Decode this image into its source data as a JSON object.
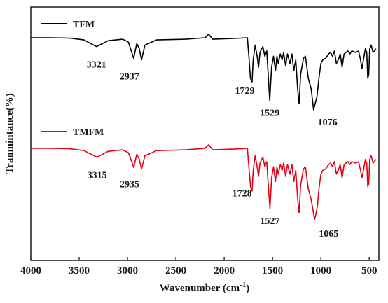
{
  "chart_data": {
    "type": "line",
    "xlabel": "Wavenumber (cm",
    "xlabel_sup": "-1",
    "xlabel_close": ")",
    "ylabel": "Tranmintance(%)",
    "xlim": [
      4000,
      400
    ],
    "x_reversed": true,
    "y_tick_labels": false,
    "grid": false,
    "legend_placement": "inline-above-each-trace",
    "x_ticks": [
      4000,
      3500,
      3000,
      2500,
      2000,
      1500,
      1000,
      500
    ],
    "x_tick_labels": [
      "4000",
      "3500",
      "3000",
      "2500",
      "2000",
      "1500",
      "1000",
      "500"
    ],
    "series": [
      {
        "name": "TFM",
        "color": "#000000",
        "points": [
          [
            4000,
            0
          ],
          [
            3800,
            0
          ],
          [
            3600,
            -0.5
          ],
          [
            3450,
            -3
          ],
          [
            3321,
            -12
          ],
          [
            3200,
            -4
          ],
          [
            3050,
            -2
          ],
          [
            2990,
            -6
          ],
          [
            2937,
            -28
          ],
          [
            2905,
            -8
          ],
          [
            2880,
            -14
          ],
          [
            2855,
            -30
          ],
          [
            2820,
            -10
          ],
          [
            2700,
            -3
          ],
          [
            2400,
            -2
          ],
          [
            2200,
            0
          ],
          [
            2160,
            5
          ],
          [
            2120,
            -2
          ],
          [
            1900,
            -1
          ],
          [
            1760,
            0
          ],
          [
            1745,
            -25
          ],
          [
            1729,
            -55
          ],
          [
            1712,
            -60
          ],
          [
            1700,
            -30
          ],
          [
            1680,
            -10
          ],
          [
            1660,
            -25
          ],
          [
            1645,
            -40
          ],
          [
            1630,
            -20
          ],
          [
            1600,
            -12
          ],
          [
            1580,
            -25
          ],
          [
            1560,
            -18
          ],
          [
            1545,
            -50
          ],
          [
            1529,
            -85
          ],
          [
            1510,
            -40
          ],
          [
            1490,
            -25
          ],
          [
            1470,
            -45
          ],
          [
            1455,
            -25
          ],
          [
            1440,
            -35
          ],
          [
            1420,
            -22
          ],
          [
            1400,
            -30
          ],
          [
            1385,
            -20
          ],
          [
            1365,
            -38
          ],
          [
            1345,
            -22
          ],
          [
            1320,
            -35
          ],
          [
            1300,
            -22
          ],
          [
            1280,
            -45
          ],
          [
            1260,
            -30
          ],
          [
            1240,
            -70
          ],
          [
            1225,
            -90
          ],
          [
            1210,
            -50
          ],
          [
            1180,
            -28
          ],
          [
            1160,
            -25
          ],
          [
            1130,
            -55
          ],
          [
            1100,
            -70
          ],
          [
            1076,
            -98
          ],
          [
            1060,
            -90
          ],
          [
            1040,
            -80
          ],
          [
            1020,
            -55
          ],
          [
            1000,
            -35
          ],
          [
            980,
            -30
          ],
          [
            950,
            -28
          ],
          [
            920,
            -22
          ],
          [
            900,
            -20
          ],
          [
            880,
            -25
          ],
          [
            860,
            -18
          ],
          [
            840,
            -35
          ],
          [
            820,
            -30
          ],
          [
            800,
            -22
          ],
          [
            780,
            -40
          ],
          [
            760,
            -22
          ],
          [
            720,
            -18
          ],
          [
            700,
            -22
          ],
          [
            680,
            -18
          ],
          [
            640,
            -20
          ],
          [
            610,
            -18
          ],
          [
            590,
            -30
          ],
          [
            575,
            -42
          ],
          [
            560,
            -30
          ],
          [
            540,
            -15
          ],
          [
            525,
            -20
          ],
          [
            515,
            -55
          ],
          [
            505,
            -50
          ],
          [
            495,
            -15
          ],
          [
            480,
            -10
          ],
          [
            460,
            -20
          ],
          [
            430,
            -15
          ]
        ],
        "labels": [
          {
            "x": 3321,
            "text": "3321"
          },
          {
            "x": 2937,
            "text": "2937"
          },
          {
            "x": 1729,
            "text": "1729"
          },
          {
            "x": 1529,
            "text": "1529"
          },
          {
            "x": 1076,
            "text": "1076"
          }
        ]
      },
      {
        "name": "TMFM",
        "color": "#e60012",
        "points": [
          [
            4000,
            0
          ],
          [
            3800,
            0
          ],
          [
            3600,
            -0.5
          ],
          [
            3450,
            -3
          ],
          [
            3315,
            -12
          ],
          [
            3200,
            -4
          ],
          [
            3050,
            -2
          ],
          [
            2990,
            -6
          ],
          [
            2935,
            -26
          ],
          [
            2905,
            -8
          ],
          [
            2880,
            -14
          ],
          [
            2855,
            -28
          ],
          [
            2820,
            -10
          ],
          [
            2700,
            -3
          ],
          [
            2400,
            -2
          ],
          [
            2200,
            0
          ],
          [
            2160,
            5
          ],
          [
            2120,
            -2
          ],
          [
            1900,
            -1
          ],
          [
            1760,
            0
          ],
          [
            1745,
            -25
          ],
          [
            1728,
            -52
          ],
          [
            1712,
            -58
          ],
          [
            1700,
            -30
          ],
          [
            1680,
            -10
          ],
          [
            1660,
            -25
          ],
          [
            1645,
            -38
          ],
          [
            1630,
            -20
          ],
          [
            1600,
            -12
          ],
          [
            1580,
            -25
          ],
          [
            1560,
            -18
          ],
          [
            1545,
            -48
          ],
          [
            1527,
            -82
          ],
          [
            1510,
            -40
          ],
          [
            1490,
            -25
          ],
          [
            1470,
            -45
          ],
          [
            1455,
            -25
          ],
          [
            1440,
            -35
          ],
          [
            1420,
            -22
          ],
          [
            1400,
            -30
          ],
          [
            1385,
            -20
          ],
          [
            1365,
            -38
          ],
          [
            1345,
            -22
          ],
          [
            1320,
            -35
          ],
          [
            1300,
            -22
          ],
          [
            1280,
            -45
          ],
          [
            1260,
            -30
          ],
          [
            1240,
            -68
          ],
          [
            1225,
            -88
          ],
          [
            1210,
            -50
          ],
          [
            1180,
            -28
          ],
          [
            1160,
            -25
          ],
          [
            1130,
            -55
          ],
          [
            1100,
            -70
          ],
          [
            1065,
            -97
          ],
          [
            1050,
            -88
          ],
          [
            1035,
            -78
          ],
          [
            1020,
            -55
          ],
          [
            1000,
            -35
          ],
          [
            980,
            -30
          ],
          [
            950,
            -28
          ],
          [
            920,
            -22
          ],
          [
            900,
            -20
          ],
          [
            880,
            -25
          ],
          [
            860,
            -18
          ],
          [
            840,
            -35
          ],
          [
            820,
            -30
          ],
          [
            800,
            -22
          ],
          [
            780,
            -40
          ],
          [
            760,
            -22
          ],
          [
            720,
            -18
          ],
          [
            700,
            -22
          ],
          [
            680,
            -18
          ],
          [
            640,
            -20
          ],
          [
            610,
            -18
          ],
          [
            590,
            -30
          ],
          [
            575,
            -40
          ],
          [
            560,
            -30
          ],
          [
            540,
            -15
          ],
          [
            525,
            -20
          ],
          [
            515,
            -52
          ],
          [
            505,
            -48
          ],
          [
            495,
            -15
          ],
          [
            480,
            -10
          ],
          [
            460,
            -20
          ],
          [
            430,
            -15
          ]
        ],
        "labels": [
          {
            "x": 3315,
            "text": "3315"
          },
          {
            "x": 2935,
            "text": "2935"
          },
          {
            "x": 1728,
            "text": "1728"
          },
          {
            "x": 1527,
            "text": "1527"
          },
          {
            "x": 1065,
            "text": "1065"
          }
        ]
      }
    ]
  }
}
